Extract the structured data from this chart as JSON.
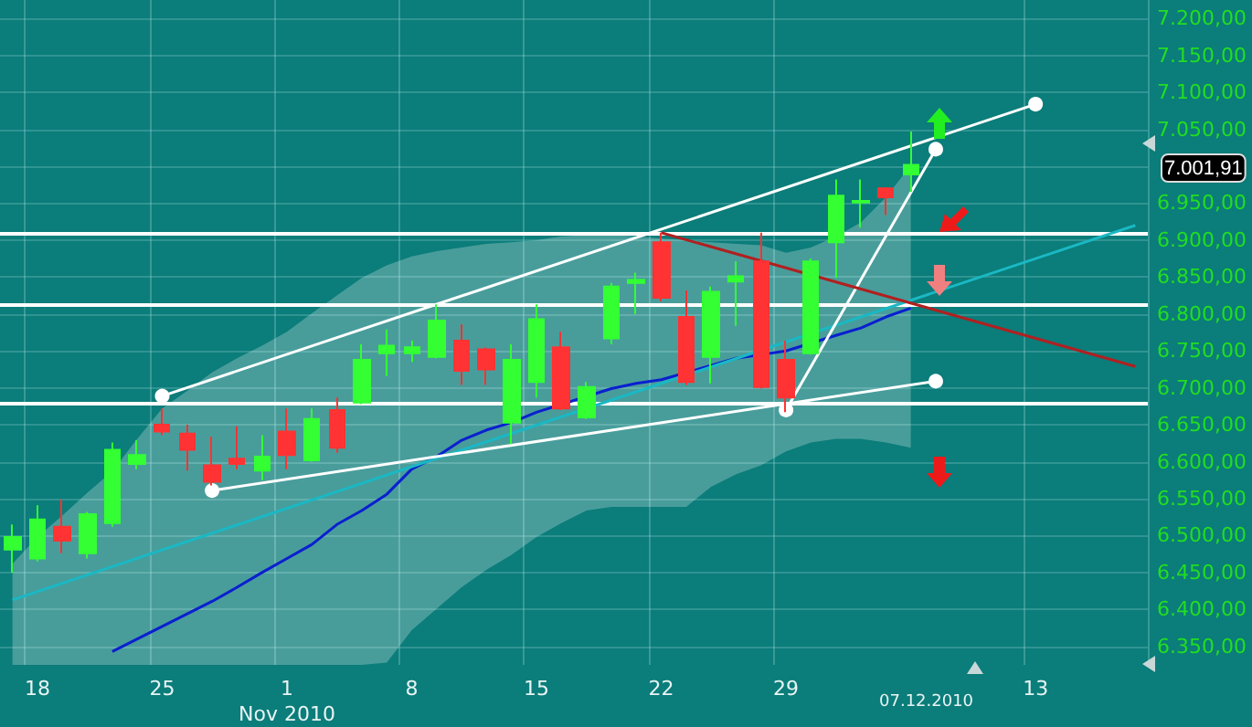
{
  "chart_data": {
    "type": "candlestick",
    "categories": [
      null,
      "18",
      null,
      null,
      null,
      null,
      "25",
      null,
      null,
      null,
      null,
      "1\nNov 2010",
      null,
      null,
      null,
      null,
      "8",
      null,
      null,
      null,
      null,
      "15",
      null,
      null,
      null,
      null,
      "22",
      null,
      null,
      null,
      null,
      "29",
      null,
      null,
      null,
      null,
      null,
      null,
      null,
      null,
      null,
      "13",
      null,
      null,
      null,
      null
    ],
    "ylim": [
      6325,
      7225
    ],
    "yticks": [
      {
        "value": 6350,
        "label": "6.350,00"
      },
      {
        "value": 6400,
        "label": "6.400,00"
      },
      {
        "value": 6450,
        "label": "6.450,00"
      },
      {
        "value": 6500,
        "label": "6.500,00"
      },
      {
        "value": 6550,
        "label": "6.550,00"
      },
      {
        "value": 6600,
        "label": "6.600,00"
      },
      {
        "value": 6650,
        "label": "6.650,00"
      },
      {
        "value": 6700,
        "label": "6.700,00"
      },
      {
        "value": 6750,
        "label": "6.750,00"
      },
      {
        "value": 6800,
        "label": "6.800,00"
      },
      {
        "value": 6850,
        "label": "6.850,00"
      },
      {
        "value": 6900,
        "label": "6.900,00"
      },
      {
        "value": 6950,
        "label": "6.950,00"
      },
      {
        "value": 7000,
        "label": null
      },
      {
        "value": 7050,
        "label": "7.050,00"
      },
      {
        "value": 7100,
        "label": "7.100,00"
      },
      {
        "value": 7150,
        "label": "7.150,00"
      },
      {
        "value": 7200,
        "label": "7.200,00"
      }
    ],
    "grid": true,
    "ref_lines": [
      {
        "axis": "y",
        "value": 6910,
        "color": "#ffffff"
      },
      {
        "axis": "y",
        "value": 6813,
        "color": "#ffffff"
      },
      {
        "axis": "y",
        "value": 6678,
        "color": "#ffffff"
      }
    ],
    "annotations": [
      "7.001,91",
      "07.12.2010"
    ],
    "series": [
      {
        "ohlc": [
          [
            6481,
            6515,
            6450,
            6498
          ],
          [
            6469,
            6541,
            6465,
            6522
          ],
          [
            6512,
            6549,
            6476,
            6493
          ],
          [
            6476,
            6532,
            6469,
            6529
          ],
          [
            6517,
            6626,
            6512,
            6616
          ],
          [
            6597,
            6629,
            6590,
            6609
          ],
          [
            6650,
            6672,
            6636,
            6641
          ],
          [
            6638,
            6650,
            6588,
            6616
          ],
          [
            6595,
            6634,
            6568,
            6573
          ],
          [
            6604,
            6648,
            6590,
            6597
          ],
          [
            6588,
            6636,
            6575,
            6607
          ],
          [
            6641,
            6672,
            6590,
            6609
          ],
          [
            6602,
            6672,
            6600,
            6658
          ],
          [
            6670,
            6687,
            6612,
            6619
          ],
          [
            6680,
            6759,
            6678,
            6738
          ],
          [
            6747,
            6779,
            6716,
            6757
          ],
          [
            6747,
            6764,
            6735,
            6755
          ],
          [
            6742,
            6813,
            6740,
            6791
          ],
          [
            6764,
            6786,
            6704,
            6723
          ],
          [
            6752,
            6755,
            6704,
            6725
          ],
          [
            6653,
            6759,
            6624,
            6738
          ],
          [
            6708,
            6813,
            6687,
            6793
          ],
          [
            6755,
            6776,
            6670,
            6672
          ],
          [
            6660,
            6708,
            6658,
            6701
          ],
          [
            6767,
            6842,
            6759,
            6837
          ],
          [
            6842,
            6856,
            6800,
            6846
          ],
          [
            6897,
            6910,
            6817,
            6822
          ],
          [
            6796,
            6832,
            6704,
            6708
          ],
          [
            6742,
            6837,
            6706,
            6830
          ],
          [
            6844,
            6871,
            6784,
            6851
          ],
          [
            6871,
            6910,
            6699,
            6701
          ],
          [
            6738,
            6764,
            6667,
            6687
          ],
          [
            6747,
            6875,
            6745,
            6871
          ],
          [
            6897,
            6982,
            6849,
            6960
          ],
          [
            6951,
            6982,
            6917,
            6953
          ],
          [
            6970,
            6972,
            6934,
            6958
          ],
          [
            6989,
            7047,
            6965,
            7001.91
          ],
          null,
          null,
          null,
          null,
          null,
          null,
          null,
          null,
          null
        ],
        "colors": [
          "#33ff33",
          "#33ff33",
          "#ff3333",
          "#33ff33",
          "#33ff33",
          "#33ff33",
          "#ff3333",
          "#ff3333",
          "#ff3333",
          "#ff3333",
          "#33ff33",
          "#ff3333",
          "#33ff33",
          "#ff3333",
          "#33ff33",
          "#33ff33",
          "#33ff33",
          "#33ff33",
          "#ff3333",
          "#ff3333",
          "#33ff33",
          "#33ff33",
          "#ff3333",
          "#33ff33",
          "#33ff33",
          "#33ff33",
          "#ff3333",
          "#ff3333",
          "#33ff33",
          "#33ff33",
          "#ff3333",
          "#ff3333",
          "#33ff33",
          "#33ff33",
          "#33ff33",
          "#ff3333",
          "#33ff33",
          null,
          null,
          null,
          null,
          null,
          null,
          null,
          null,
          null
        ]
      },
      {
        "type": "line",
        "color": "#0a1fd0",
        "values": [
          null,
          null,
          null,
          null,
          6343,
          6360,
          6377,
          6394,
          6411,
          6430,
          6450,
          6469,
          6488,
          6515,
          6534,
          6556,
          6590,
          6607,
          6629,
          6643,
          6653,
          6667,
          null,
          null,
          6699,
          6706,
          6711,
          null,
          null,
          6740,
          null,
          6750,
          null,
          6771,
          6781,
          6796,
          6808,
          null,
          null,
          null,
          null,
          null,
          null,
          null,
          null,
          null
        ],
        "upper": [
          6462,
          6498,
          6527,
          6558,
          6587,
          6631,
          6672,
          6696,
          6721,
          6740,
          6757,
          6776,
          6801,
          6825,
          6849,
          6866,
          6878,
          6885,
          6890,
          6895,
          6897,
          6900,
          6905,
          6907,
          6907,
          6905,
          6902,
          6900,
          6897,
          6895,
          6893,
          6883,
          6890,
          6905,
          6924,
          6958,
          7001,
          null,
          null,
          null,
          null,
          null,
          null,
          null,
          null,
          null
        ],
        "lower": [
          6325,
          6325,
          6325,
          6325,
          6325,
          6325,
          6325,
          6325,
          6325,
          6325,
          6325,
          6325,
          6325,
          6325,
          6325,
          6328,
          6372,
          6401,
          6430,
          6454,
          6474,
          6498,
          6517,
          6534,
          6539,
          6539,
          6539,
          6539,
          6566,
          6583,
          6595,
          6614,
          6626,
          6631,
          6631,
          6626,
          6619,
          null,
          null,
          null,
          null,
          null,
          null,
          null,
          null,
          null
        ]
      },
      {
        "type": "line",
        "color": "#1ab8c4",
        "values": [
          6413,
          null,
          null,
          null,
          null,
          null,
          null,
          null,
          null,
          null,
          null,
          null,
          null,
          null,
          null,
          null,
          null,
          null,
          null,
          null,
          null,
          null,
          null,
          null,
          null,
          null,
          null,
          null,
          null,
          null,
          null,
          null,
          null,
          null,
          null,
          null,
          null,
          null,
          null,
          null,
          null,
          null,
          null,
          null,
          null,
          6920
        ]
      },
      {
        "type": "line",
        "color": "#ffffff",
        "marker": "circle",
        "values": [
          null,
          null,
          null,
          null,
          null,
          null,
          6689,
          null,
          null,
          null,
          null,
          null,
          null,
          null,
          null,
          null,
          null,
          null,
          null,
          null,
          null,
          null,
          null,
          null,
          null,
          null,
          null,
          null,
          null,
          null,
          null,
          null,
          null,
          null,
          null,
          null,
          null,
          null,
          null,
          null,
          null,
          7084,
          null,
          null,
          null,
          null
        ]
      },
      {
        "type": "line",
        "color": "#ffffff",
        "marker": "circle",
        "values": [
          null,
          null,
          null,
          null,
          null,
          null,
          null,
          null,
          6561,
          null,
          null,
          null,
          null,
          null,
          null,
          null,
          null,
          null,
          null,
          null,
          null,
          null,
          null,
          null,
          null,
          null,
          null,
          null,
          null,
          null,
          null,
          null,
          null,
          null,
          null,
          null,
          null,
          6709,
          null,
          null,
          null,
          null,
          null,
          null,
          null,
          null
        ]
      },
      {
        "type": "line",
        "color": "#ffffff",
        "marker": "circle",
        "values": [
          null,
          null,
          null,
          null,
          null,
          null,
          null,
          null,
          null,
          null,
          null,
          null,
          null,
          null,
          null,
          null,
          null,
          null,
          null,
          null,
          null,
          null,
          null,
          null,
          null,
          null,
          null,
          null,
          null,
          null,
          null,
          6670,
          null,
          null,
          null,
          null,
          null,
          7023,
          null,
          null,
          null,
          null,
          null,
          null,
          null,
          null
        ]
      },
      {
        "type": "line",
        "color": "#b02020",
        "values": [
          null,
          null,
          null,
          null,
          null,
          null,
          null,
          null,
          null,
          null,
          null,
          null,
          null,
          null,
          null,
          null,
          null,
          null,
          null,
          null,
          null,
          null,
          null,
          null,
          null,
          null,
          6910,
          null,
          null,
          null,
          null,
          null,
          null,
          null,
          null,
          null,
          null,
          null,
          null,
          null,
          null,
          null,
          null,
          null,
          null,
          6729
        ]
      }
    ]
  }
}
